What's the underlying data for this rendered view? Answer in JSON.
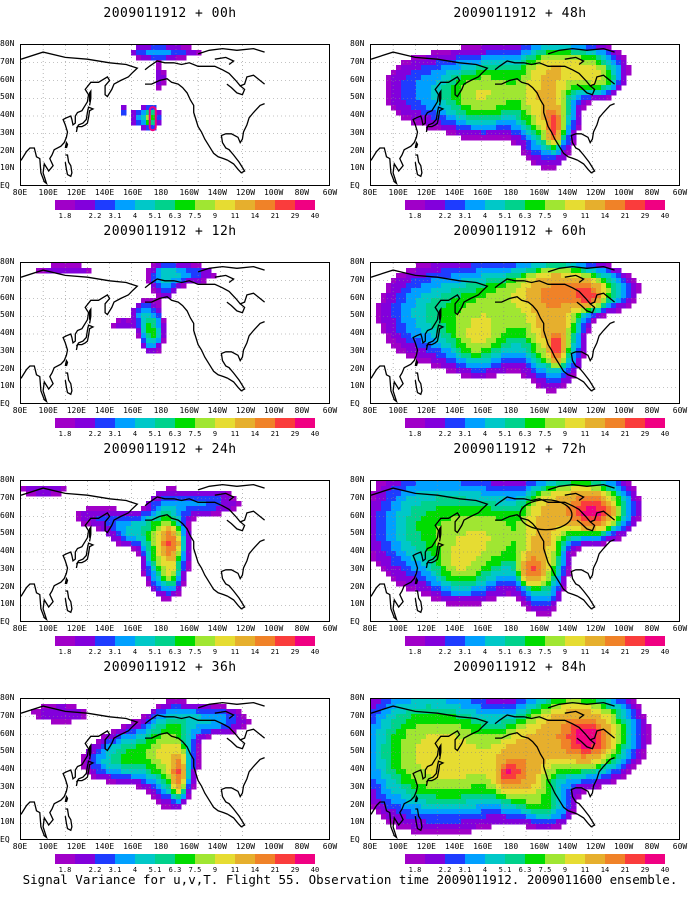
{
  "panels": [
    {
      "title": "2009011912 + 00h",
      "lead": 0
    },
    {
      "title": "2009011912 + 48h",
      "lead": 48
    },
    {
      "title": "2009011912 + 12h",
      "lead": 12
    },
    {
      "title": "2009011912 + 60h",
      "lead": 60
    },
    {
      "title": "2009011912 + 24h",
      "lead": 24
    },
    {
      "title": "2009011912 + 72h",
      "lead": 72
    },
    {
      "title": "2009011912 + 36h",
      "lead": 36
    },
    {
      "title": "2009011912 + 84h",
      "lead": 84
    }
  ],
  "axes": {
    "y_labels": [
      "80N",
      "70N",
      "60N",
      "50N",
      "40N",
      "30N",
      "20N",
      "10N",
      "EQ"
    ],
    "x_labels": [
      "80E",
      "100E",
      "120E",
      "140E",
      "160E",
      "180",
      "160W",
      "140W",
      "120W",
      "100W",
      "80W",
      "60W"
    ]
  },
  "colorbar": {
    "levels": [
      "1.8",
      "2.2",
      "3.1",
      "4",
      "5.1",
      "6.3",
      "7.5",
      "9",
      "11",
      "14",
      "21",
      "29",
      "40"
    ],
    "colors": [
      "#a000c8",
      "#8200dc",
      "#1e3cff",
      "#00a0ff",
      "#00c8c8",
      "#00d28c",
      "#00dc00",
      "#a0e632",
      "#e6dc32",
      "#e6af2d",
      "#f08228",
      "#fa3c3c",
      "#f00082"
    ]
  },
  "footer": "Signal Variance for u,v,T. Flight 55. Observation time 2009011912. 2009011600 ensemble."
}
